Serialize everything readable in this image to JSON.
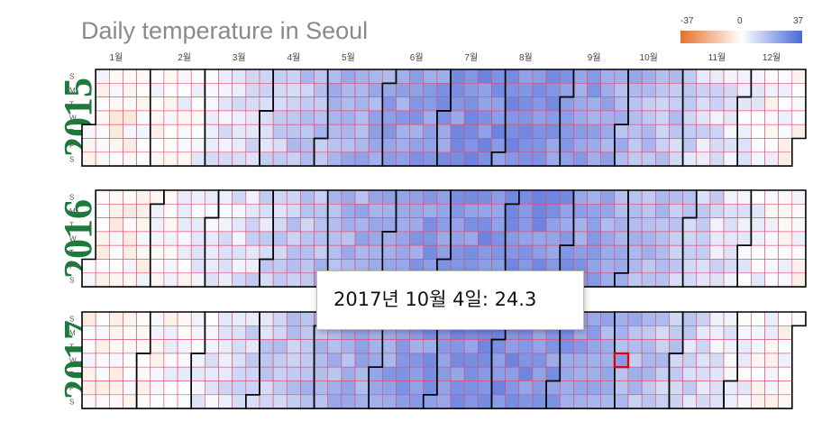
{
  "title": "Daily temperature in Seoul",
  "legend": {
    "min_label": "-37",
    "mid_label": "0",
    "max_label": "37",
    "low_color": "#e8702a",
    "mid_color": "#ffffff",
    "high_color": "#4a68d8"
  },
  "tooltip": {
    "text": "2017년 10월 4일: 24.3"
  },
  "colors": {
    "grid_line": "#e34b6e",
    "month_border": "#000000",
    "highlight": "#e00000",
    "year_label": "#1e7a3a",
    "title": "#8a8a8a"
  },
  "chart_data": {
    "type": "heatmap",
    "title": "Daily temperature in Seoul",
    "color_scale": {
      "min": -37,
      "mid": 0,
      "max": 37
    },
    "years": [
      "2015",
      "2016",
      "2017"
    ],
    "month_labels": [
      "1월",
      "2월",
      "3월",
      "4월",
      "5월",
      "6월",
      "7월",
      "8월",
      "9월",
      "10월",
      "11월",
      "12월"
    ],
    "day_labels": [
      "S",
      "M",
      "T",
      "W",
      "T",
      "F",
      "S"
    ],
    "selected": {
      "year": "2017",
      "month": 10,
      "day": 4,
      "value": 24.3
    },
    "approx_monthly_mean": [
      -2.4,
      0.4,
      6.1,
      13.0,
      18.6,
      23.0,
      25.7,
      26.1,
      21.6,
      15.0,
      7.5,
      0.5
    ]
  }
}
